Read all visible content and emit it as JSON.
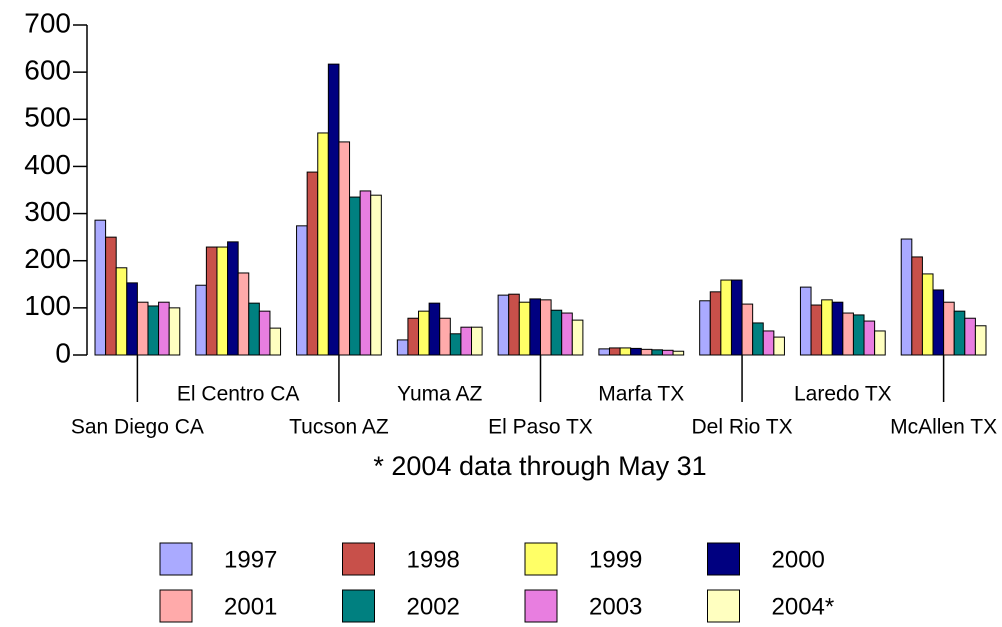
{
  "chart_data": {
    "type": "bar",
    "note": "* 2004 data through May 31",
    "categories": [
      "San Diego CA",
      "El Centro CA",
      "Tucson AZ",
      "Yuma AZ",
      "El Paso TX",
      "Marfa TX",
      "Del Rio TX",
      "Laredo TX",
      "McAllen TX"
    ],
    "series": [
      {
        "name": "1997",
        "color": "#aaaaff",
        "values": [
          286,
          148,
          274,
          32,
          127,
          13,
          115,
          144,
          246
        ]
      },
      {
        "name": "1998",
        "color": "#c8504a",
        "values": [
          250,
          229,
          388,
          78,
          129,
          15,
          134,
          106,
          208
        ]
      },
      {
        "name": "1999",
        "color": "#ffff66",
        "values": [
          185,
          229,
          471,
          93,
          112,
          15,
          159,
          117,
          172
        ]
      },
      {
        "name": "2000",
        "color": "#000080",
        "values": [
          153,
          240,
          617,
          110,
          119,
          14,
          159,
          112,
          138
        ]
      },
      {
        "name": "2001",
        "color": "#ffaaaa",
        "values": [
          112,
          174,
          452,
          78,
          117,
          12,
          108,
          89,
          112
        ]
      },
      {
        "name": "2002",
        "color": "#008080",
        "values": [
          104,
          110,
          335,
          45,
          95,
          11,
          68,
          85,
          93
        ]
      },
      {
        "name": "2003",
        "color": "#e87ee0",
        "values": [
          112,
          93,
          348,
          59,
          89,
          10,
          51,
          72,
          78
        ]
      },
      {
        "name": "2004*",
        "color": "#ffffc0",
        "values": [
          100,
          57,
          339,
          59,
          74,
          8,
          38,
          51,
          62
        ]
      }
    ],
    "ylim": [
      0,
      700
    ],
    "yticks": [
      0,
      100,
      200,
      300,
      400,
      500,
      600,
      700
    ]
  }
}
